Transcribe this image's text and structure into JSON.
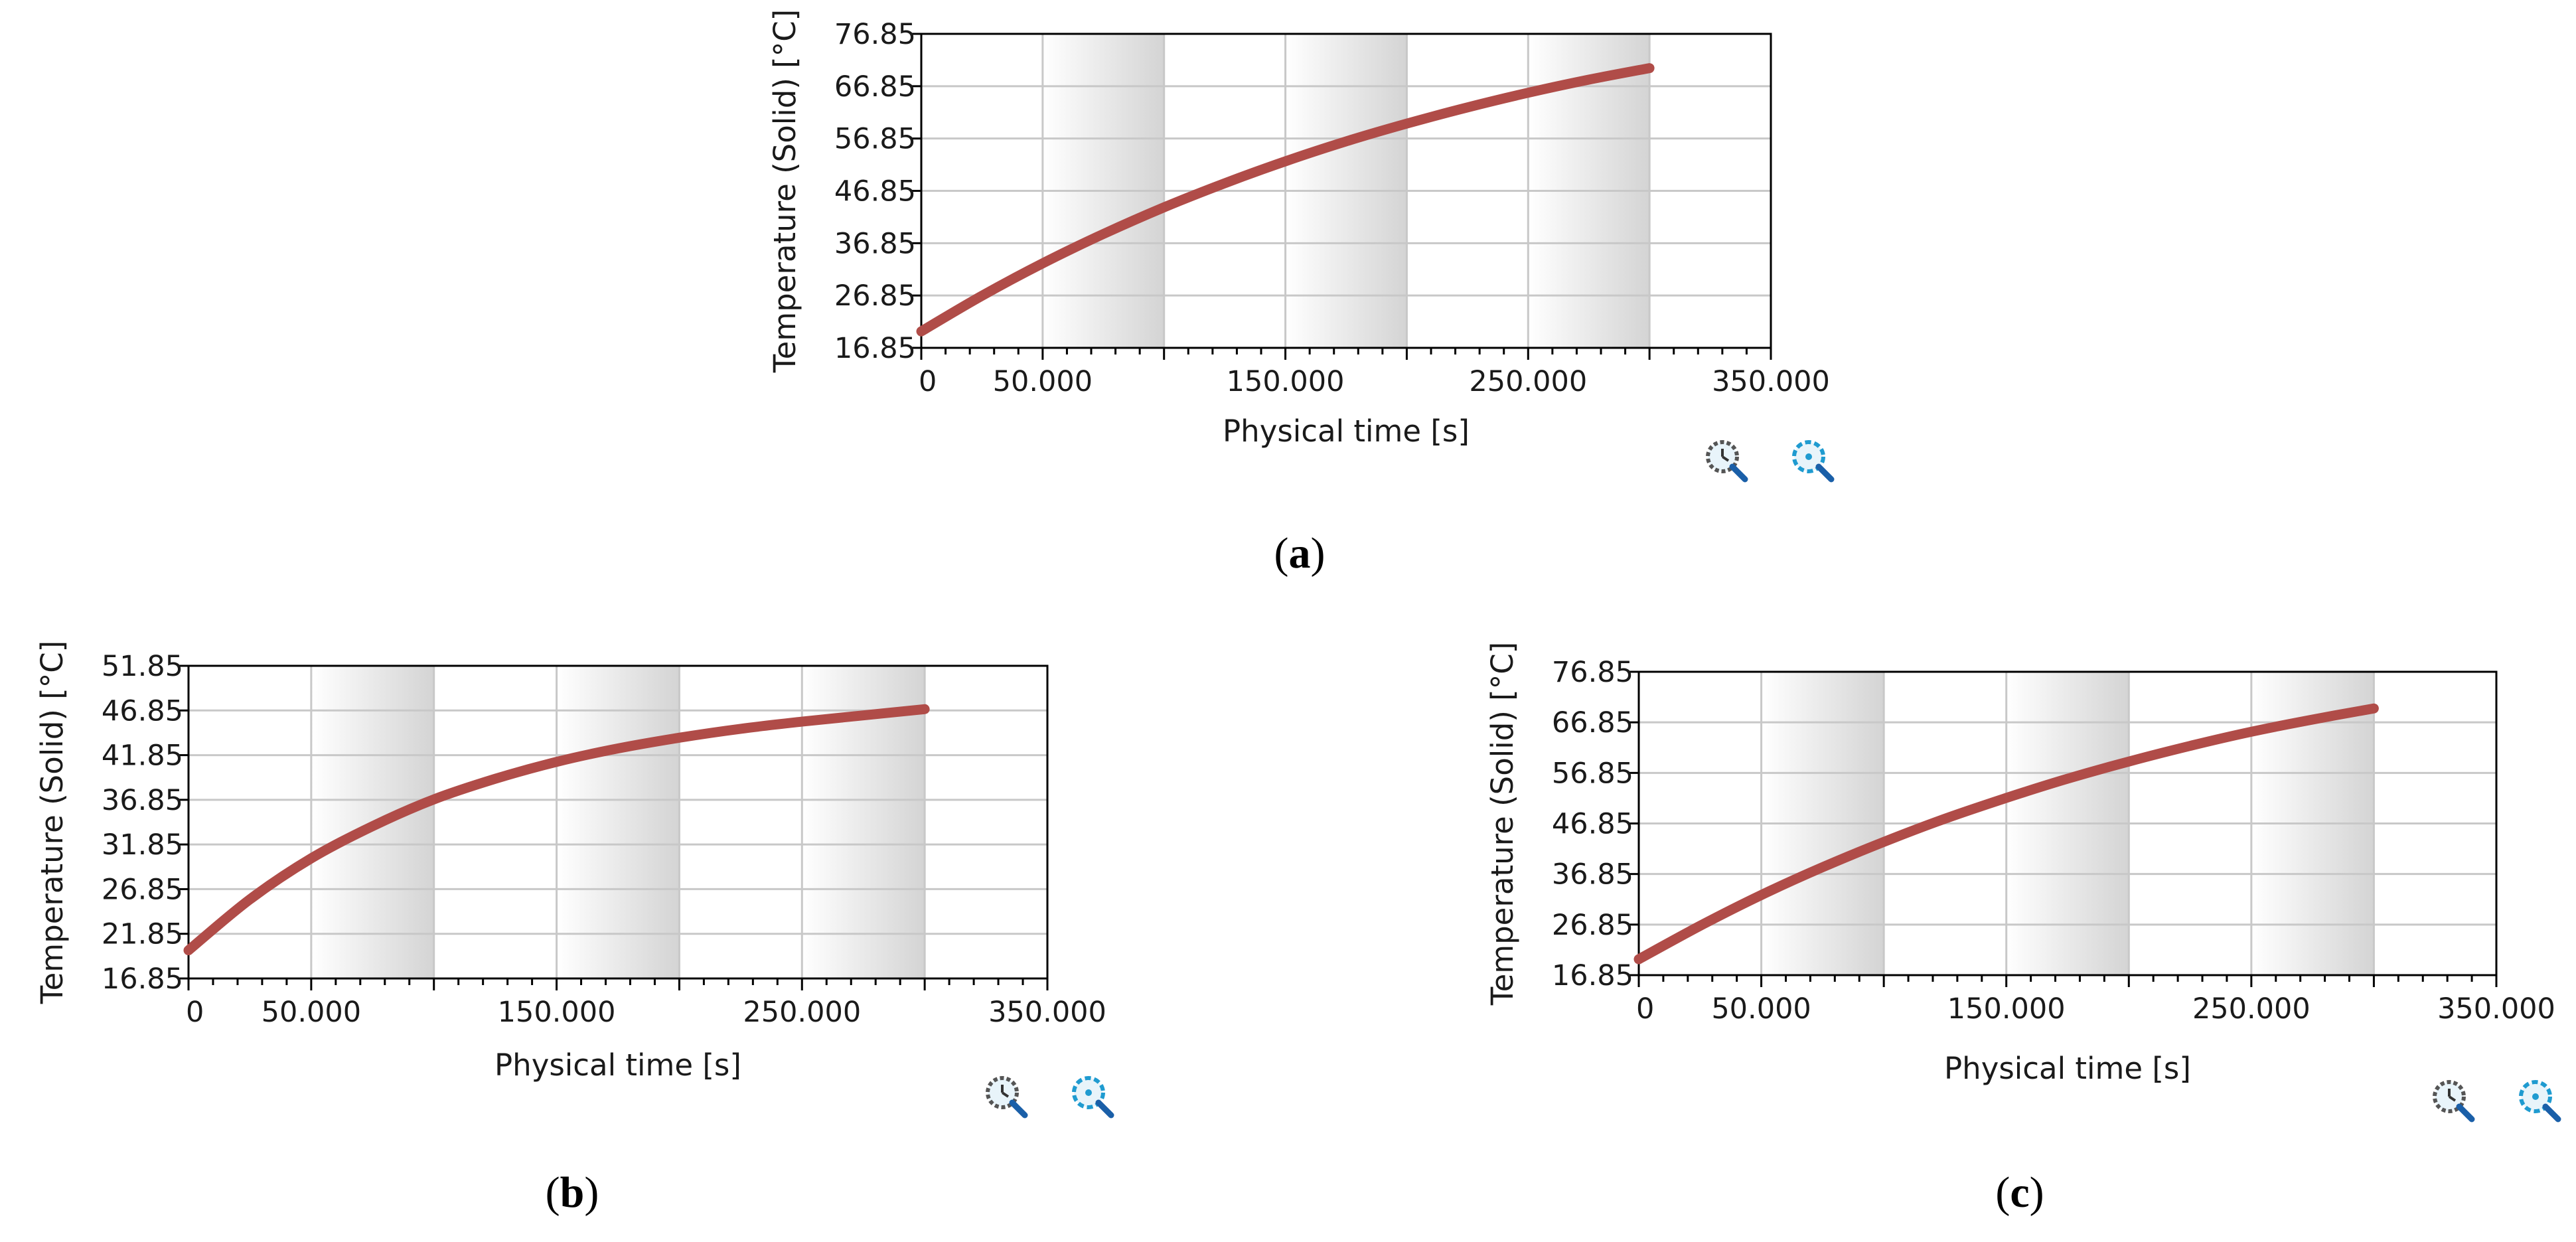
{
  "chart_data": [
    {
      "id": "a",
      "type": "line",
      "caption_open": "(",
      "caption_letter": "a",
      "caption_close": ")",
      "xlabel": "Physical time [s]",
      "ylabel": "Temperature (Solid) [°C]",
      "xlim": [
        0,
        350
      ],
      "ylim": [
        16.85,
        76.85
      ],
      "xticks": [
        0,
        50,
        100,
        150,
        200,
        250,
        300,
        350
      ],
      "xtick_labels": [
        "0",
        "50.000",
        "",
        "150.000",
        "",
        "250.000",
        "",
        "350.000"
      ],
      "ytick_labels": [
        "76.85",
        "66.85",
        "56.85",
        "46.85",
        "36.85",
        "26.85",
        "16.85"
      ],
      "yticks": [
        76.85,
        66.85,
        56.85,
        46.85,
        36.85,
        26.85,
        16.85
      ],
      "grid": true,
      "series": [
        {
          "name": "Temperature (Solid)",
          "x": [
            0,
            25,
            50,
            75,
            100,
            125,
            150,
            175,
            200,
            225,
            250,
            275,
            300
          ],
          "y": [
            20.0,
            26.8,
            33.0,
            38.6,
            43.7,
            48.3,
            52.5,
            56.3,
            59.7,
            62.8,
            65.6,
            68.1,
            70.3
          ]
        }
      ],
      "zoom_icons": [
        "zoom-reset-icon",
        "zoom-fit-icon"
      ]
    },
    {
      "id": "b",
      "type": "line",
      "caption_open": "(",
      "caption_letter": "b",
      "caption_close": ")",
      "xlabel": "Physical time [s]",
      "ylabel": "Temperature (Solid) [°C]",
      "xlim": [
        0,
        350
      ],
      "ylim": [
        16.85,
        51.85
      ],
      "xticks": [
        0,
        50,
        100,
        150,
        200,
        250,
        300,
        350
      ],
      "xtick_labels": [
        "0",
        "50.000",
        "",
        "150.000",
        "",
        "250.000",
        "",
        "350.000"
      ],
      "ytick_labels": [
        "51.85",
        "46.85",
        "41.85",
        "36.85",
        "31.85",
        "26.85",
        "21.85",
        "16.85"
      ],
      "yticks": [
        51.85,
        46.85,
        41.85,
        36.85,
        31.85,
        26.85,
        21.85,
        16.85
      ],
      "grid": true,
      "series": [
        {
          "name": "Temperature (Solid)",
          "x": [
            0,
            25,
            50,
            75,
            100,
            125,
            150,
            175,
            200,
            225,
            250,
            275,
            300
          ],
          "y": [
            20.0,
            25.7,
            30.3,
            33.9,
            36.9,
            39.2,
            41.1,
            42.6,
            43.8,
            44.8,
            45.6,
            46.3,
            47.0
          ]
        }
      ],
      "zoom_icons": [
        "zoom-reset-icon",
        "zoom-fit-icon"
      ]
    },
    {
      "id": "c",
      "type": "line",
      "caption_open": "(",
      "caption_letter": "c",
      "caption_close": ")",
      "xlabel": "Physical time [s]",
      "ylabel": "Temperature (Solid) [°C]",
      "xlim": [
        0,
        350
      ],
      "ylim": [
        16.85,
        76.85
      ],
      "xticks": [
        0,
        50,
        100,
        150,
        200,
        250,
        300,
        350
      ],
      "xtick_labels": [
        "0",
        "50.000",
        "",
        "150.000",
        "",
        "250.000",
        "",
        "350.000"
      ],
      "ytick_labels": [
        "76.85",
        "66.85",
        "56.85",
        "46.85",
        "36.85",
        "26.85",
        "16.85"
      ],
      "yticks": [
        76.85,
        66.85,
        56.85,
        46.85,
        36.85,
        26.85,
        16.85
      ],
      "grid": true,
      "series": [
        {
          "name": "Temperature (Solid)",
          "x": [
            0,
            25,
            50,
            75,
            100,
            125,
            150,
            175,
            200,
            225,
            250,
            275,
            300
          ],
          "y": [
            20.0,
            26.6,
            32.7,
            38.2,
            43.2,
            47.8,
            51.9,
            55.7,
            59.1,
            62.2,
            65.0,
            67.4,
            69.6
          ]
        }
      ],
      "zoom_icons": [
        "zoom-reset-icon",
        "zoom-fit-icon"
      ]
    }
  ],
  "colors": {
    "line": "#b04c48",
    "grid": "#c8c8c8",
    "band_dark": "#d4d4d4",
    "band_light": "#ffffff",
    "axis": "#000000",
    "zoom_lens": "#1f9bd0"
  }
}
